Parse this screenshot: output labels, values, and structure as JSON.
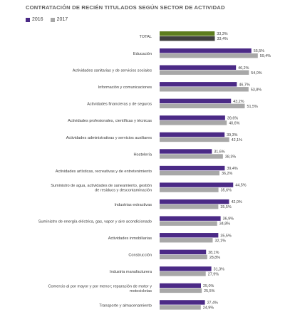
{
  "chart_data": {
    "type": "bar",
    "orientation": "horizontal",
    "title": "CONTRATACIÓN DE RECIÉN TITULADOS SEGÚN SECTOR DE ACTIVIDAD",
    "legend_position": "top-left",
    "grid": false,
    "xlim": [
      0,
      60
    ],
    "series": [
      {
        "name": "2016",
        "color": "#4b2a86"
      },
      {
        "name": "2017",
        "color": "#a8a8a8"
      }
    ],
    "total": {
      "label": "TOTAL",
      "values": [
        33.3,
        33.4
      ],
      "value_labels": [
        "33,3%",
        "33,4%"
      ],
      "colors": [
        "#5d7d1e",
        "#3f3f3f"
      ]
    },
    "categories": [
      {
        "label": [
          "Educación"
        ],
        "values": [
          55.5,
          59.4
        ],
        "value_labels": [
          "55,5%",
          "59,4%"
        ]
      },
      {
        "label": [
          "Actividades sanitarias y de servicios sociales"
        ],
        "values": [
          46.2,
          54.0
        ],
        "value_labels": [
          "46,2%",
          "54,0%"
        ]
      },
      {
        "label": [
          "Información y comunicaciones"
        ],
        "values": [
          46.7,
          53.8
        ],
        "value_labels": [
          "46,7%",
          "53,8%"
        ]
      },
      {
        "label": [
          "Actividades financieras y de seguros"
        ],
        "values": [
          43.2,
          51.5
        ],
        "value_labels": [
          "43,2%",
          "51,5%"
        ]
      },
      {
        "label": [
          "Actividades profesionales, científicas y técnicas"
        ],
        "values": [
          39.6,
          40.6
        ],
        "value_labels": [
          "39,6%",
          "40,6%"
        ]
      },
      {
        "label": [
          "Actividades administrativas y servicios auxiliares"
        ],
        "values": [
          39.3,
          42.1
        ],
        "value_labels": [
          "39,3%",
          "42,1%"
        ]
      },
      {
        "label": [
          "Hostelería"
        ],
        "values": [
          31.6,
          38.3
        ],
        "value_labels": [
          "31,6%",
          "38,3%"
        ]
      },
      {
        "label": [
          "Actividades artísticas, recreativas y de entretenimiento"
        ],
        "values": [
          39.4,
          36.2
        ],
        "value_labels": [
          "39,4%",
          "36,2%"
        ]
      },
      {
        "label": [
          "Suministro de agua, actividades de saneamiento, gestión",
          "de residuos y descontaminación"
        ],
        "values": [
          44.5,
          35.6
        ],
        "value_labels": [
          "44,5%",
          "35,6%"
        ]
      },
      {
        "label": [
          "Industrias extractivas"
        ],
        "values": [
          42.0,
          35.5
        ],
        "value_labels": [
          "42,0%",
          "35,5%"
        ]
      },
      {
        "label": [
          "Suministro de energía eléctrica, gas, vapor y aire acondicionado"
        ],
        "values": [
          36.9,
          34.8
        ],
        "value_labels": [
          "36,9%",
          "34,8%"
        ]
      },
      {
        "label": [
          "Actividades inmobiliarias"
        ],
        "values": [
          35.5,
          32.1
        ],
        "value_labels": [
          "35,5%",
          "32,1%"
        ]
      },
      {
        "label": [
          "Construcción"
        ],
        "values": [
          28.1,
          28.8
        ],
        "value_labels": [
          "28,1%",
          "28,8%"
        ]
      },
      {
        "label": [
          "Industria manufacturera"
        ],
        "values": [
          31.3,
          27.9
        ],
        "value_labels": [
          "31,3%",
          "27,9%"
        ]
      },
      {
        "label": [
          "Comercio al por mayor y por menor; reparación de motor y",
          "motocicletas"
        ],
        "values": [
          25.0,
          25.5
        ],
        "value_labels": [
          "25,0%",
          "25,5%"
        ]
      },
      {
        "label": [
          "Transporte y almacenamiento"
        ],
        "values": [
          27.4,
          24.9
        ],
        "value_labels": [
          "27,4%",
          "24,9%"
        ]
      }
    ]
  }
}
